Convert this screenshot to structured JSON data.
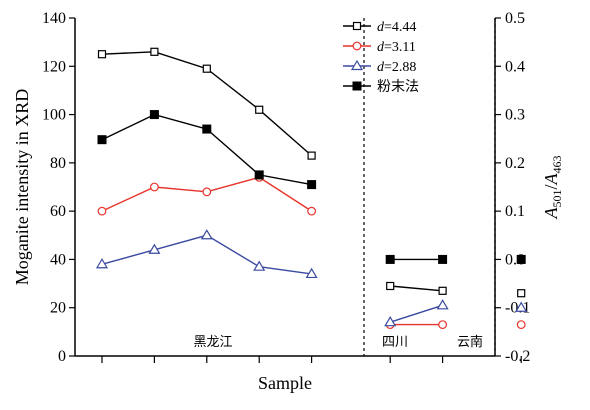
{
  "chart_data": {
    "type": "line",
    "xlabel": "Sample",
    "ylabel_left": "Moganite intensity in XRD",
    "ylabel_right": {
      "A1": "A",
      "sub1": "501",
      "slash": "/",
      "A2": "A",
      "sub2": "463"
    },
    "ylim_left": [
      0,
      140
    ],
    "yticks_left": [
      "0",
      "20",
      "40",
      "60",
      "80",
      "100",
      "120",
      "140"
    ],
    "ylim_right": [
      -0.2,
      0.5
    ],
    "yticks_right": [
      "-0.2",
      "-0.1",
      "0.0",
      "0.1",
      "0.2",
      "0.3",
      "0.4",
      "0.5"
    ],
    "grid": false,
    "legend_placement": "top, inside middle panel",
    "regions": [
      {
        "label": "黑龙江",
        "x": [
          1,
          2,
          3,
          4,
          5
        ]
      },
      {
        "label": "四川",
        "x": [
          6.5,
          7.5
        ]
      },
      {
        "label": "云南",
        "x": [
          9
        ]
      }
    ],
    "separators_x": [
      6,
      8.5
    ],
    "x_ticks": [
      1,
      2,
      3,
      4,
      5,
      6.5,
      7.5,
      9
    ],
    "series": [
      {
        "legend_italic": "d",
        "legend_rest": "=4.44",
        "axis": "left",
        "marker": "square-open",
        "color": "#000000",
        "line_color": "#000000",
        "groups": [
          [
            [
              1,
              125
            ],
            [
              2,
              126
            ],
            [
              3,
              119
            ],
            [
              4,
              102
            ],
            [
              5,
              83
            ]
          ],
          [
            [
              6.5,
              29
            ],
            [
              7.5,
              27
            ]
          ],
          [
            [
              9,
              26
            ]
          ]
        ]
      },
      {
        "legend_italic": "d",
        "legend_rest": "=3.11",
        "axis": "left",
        "marker": "circle-open",
        "color": "#e8332a",
        "line_color": "#e8332a",
        "groups": [
          [
            [
              1,
              60
            ],
            [
              2,
              70
            ],
            [
              3,
              68
            ],
            [
              4,
              74
            ],
            [
              5,
              60
            ]
          ],
          [
            [
              6.5,
              13
            ],
            [
              7.5,
              13
            ]
          ],
          [
            [
              9,
              13
            ]
          ]
        ]
      },
      {
        "legend_italic": "d",
        "legend_rest": "=2.88",
        "axis": "left",
        "marker": "triangle-open",
        "color": "#3a4aa0",
        "line_color": "#3a4aa0",
        "groups": [
          [
            [
              1,
              38
            ],
            [
              2,
              44
            ],
            [
              3,
              50
            ],
            [
              4,
              37
            ],
            [
              5,
              34
            ]
          ],
          [
            [
              6.5,
              14
            ],
            [
              7.5,
              21
            ]
          ],
          [
            [
              9,
              20
            ]
          ]
        ]
      },
      {
        "legend_italic": "",
        "legend_rest": "粉末法",
        "axis": "right",
        "marker": "square-filled",
        "color": "#000000",
        "line_color": "#000000",
        "groups": [
          [
            [
              1,
              0.248
            ],
            [
              2,
              0.3
            ],
            [
              3,
              0.27
            ],
            [
              4,
              0.175
            ],
            [
              5,
              0.155
            ]
          ],
          [
            [
              6.5,
              0.0
            ],
            [
              7.5,
              0.0
            ]
          ],
          [
            [
              9,
              0.0
            ]
          ]
        ]
      }
    ]
  }
}
